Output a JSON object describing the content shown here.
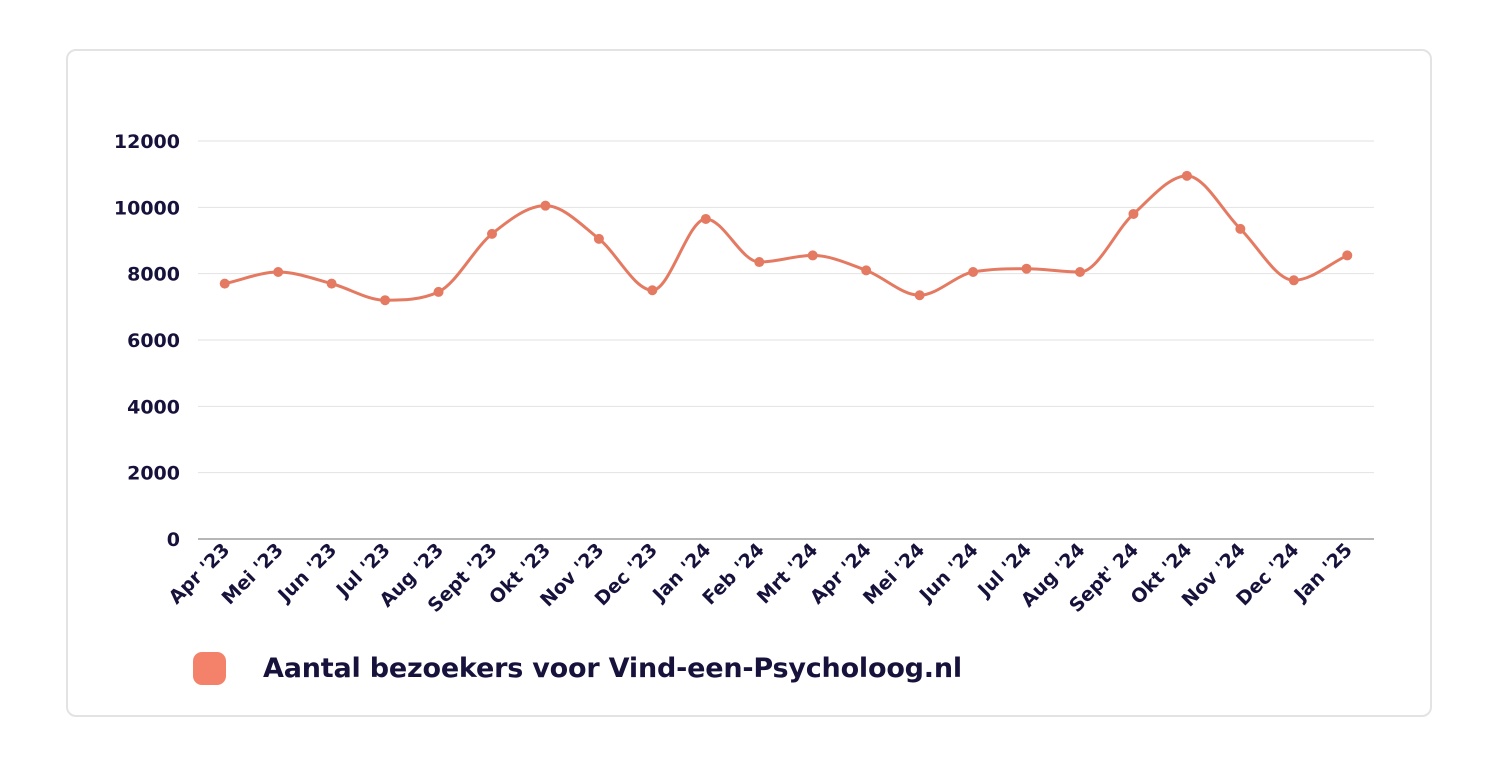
{
  "chart_data": {
    "type": "line",
    "title": "",
    "xlabel": "",
    "ylabel": "",
    "ylim": [
      0,
      12000
    ],
    "yticks": [
      "0",
      "2000",
      "4000",
      "6000",
      "8000",
      "10000",
      "12000"
    ],
    "grid": true,
    "legend_position": "bottom-left",
    "categories": [
      "Apr '23",
      "Mei '23",
      "Jun '23",
      "Jul '23",
      "Aug '23",
      "Sept '23",
      "Okt '23",
      "Nov '23",
      "Dec '23",
      "Jan '24",
      "Feb '24",
      "Mrt '24",
      "Apr '24",
      "Mei '24",
      "Jun '24",
      "Jul '24",
      "Aug '24",
      "Sept' 24",
      "Okt '24",
      "Nov '24",
      "Dec '24",
      "Jan '25"
    ],
    "series": [
      {
        "name": "Aantal bezoekers voor Vind-een-Psycholoog.nl",
        "color": "#e57a62",
        "values": [
          7700,
          8050,
          7700,
          7200,
          7450,
          9200,
          10050,
          9050,
          7500,
          9650,
          8350,
          8550,
          8100,
          7350,
          8050,
          8150,
          8050,
          9800,
          10950,
          9350,
          7800,
          8550
        ]
      }
    ]
  },
  "legend": {
    "label": "Aantal bezoekers voor Vind-een-Psycholoog.nl",
    "swatch_color": "#f4826a"
  }
}
